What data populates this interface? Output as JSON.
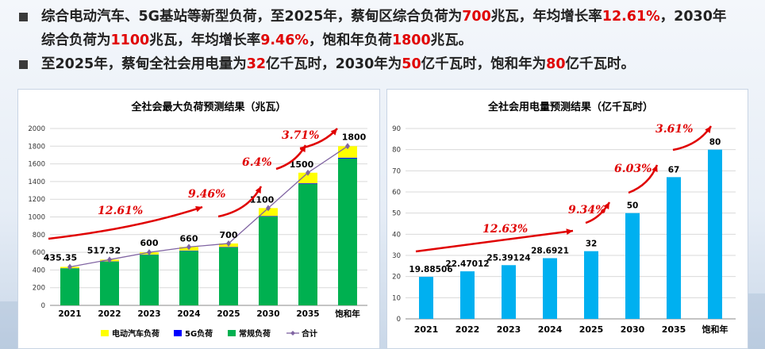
{
  "bullets": [
    [
      {
        "t": "综合电动汽车、5G基站等新型负荷，至2025年，蔡甸区综合负荷为"
      },
      {
        "t": "700",
        "hl": true
      },
      {
        "t": "兆瓦，年均增长率"
      },
      {
        "t": "12.61%",
        "hl": true
      },
      {
        "t": "，2030年"
      },
      {
        "br": true
      },
      {
        "t": "综合负荷为"
      },
      {
        "t": "1100",
        "hl": true
      },
      {
        "t": "兆瓦，年均增长率"
      },
      {
        "t": "9.46%",
        "hl": true
      },
      {
        "t": "，饱和年负荷"
      },
      {
        "t": "1800",
        "hl": true
      },
      {
        "t": "兆瓦。"
      }
    ],
    [
      {
        "t": "至2025年，蔡甸全社会用电量为"
      },
      {
        "t": "32",
        "hl": true
      },
      {
        "t": "亿千瓦时，2030年为"
      },
      {
        "t": "50",
        "hl": true
      },
      {
        "t": "亿千瓦时，饱和年为"
      },
      {
        "t": "80",
        "hl": true
      },
      {
        "t": "亿千瓦时。"
      }
    ]
  ],
  "colors": {
    "ev": "#ffff00",
    "g5": "#0000ff",
    "regular": "#00b050",
    "total_line": "#8064a2",
    "electricity_bar": "#00b0f0",
    "arrow": "#e00000",
    "highlight": "#e00000"
  },
  "chart_data": [
    {
      "type": "bar",
      "stacked": true,
      "title": "全社会最大负荷预测结果（兆瓦）",
      "categories": [
        "2021",
        "2022",
        "2023",
        "2024",
        "2025",
        "2030",
        "2035",
        "饱和年"
      ],
      "series": [
        {
          "name": "电动汽车负荷",
          "values": [
            15,
            20,
            25,
            40,
            40,
            90,
            120,
            130
          ]
        },
        {
          "name": "5G负荷",
          "values": [
            2,
            3,
            3,
            4,
            5,
            6,
            8,
            10
          ]
        },
        {
          "name": "常规负荷",
          "values": [
            418.35,
            494.32,
            572,
            616,
            655,
            1004,
            1372,
            1660
          ]
        }
      ],
      "line": {
        "name": "合计",
        "values": [
          435.35,
          517.32,
          600,
          660,
          700,
          1100,
          1500,
          1800
        ]
      },
      "data_labels": [
        "435.35",
        "517.32",
        "600",
        "660",
        "700",
        "1100",
        "1500",
        "1800"
      ],
      "ylim": [
        0,
        2000
      ],
      "yticks": [
        0,
        200,
        400,
        600,
        800,
        1000,
        1200,
        1400,
        1600,
        1800,
        2000
      ],
      "legend": "bottom",
      "growth_annotations": [
        "12.61%",
        "9.46%",
        "6.4%",
        "3.71%"
      ]
    },
    {
      "type": "bar",
      "title": "全社会用电量预测结果（亿千瓦时）",
      "categories": [
        "2021",
        "2022",
        "2023",
        "2024",
        "2025",
        "2030",
        "2035",
        "饱和年"
      ],
      "values": [
        19.88506,
        22.47012,
        25.39124,
        28.6921,
        32,
        50,
        67,
        80
      ],
      "data_labels": [
        "19.88506",
        "22.47012",
        "25.39124",
        "28.6921",
        "32",
        "50",
        "67",
        "80"
      ],
      "ylim": [
        0,
        90
      ],
      "yticks": [
        0,
        10,
        20,
        30,
        40,
        50,
        60,
        70,
        80,
        90
      ],
      "growth_annotations": [
        "12.63%",
        "9.34%",
        "6.03%",
        "3.61%"
      ]
    }
  ]
}
